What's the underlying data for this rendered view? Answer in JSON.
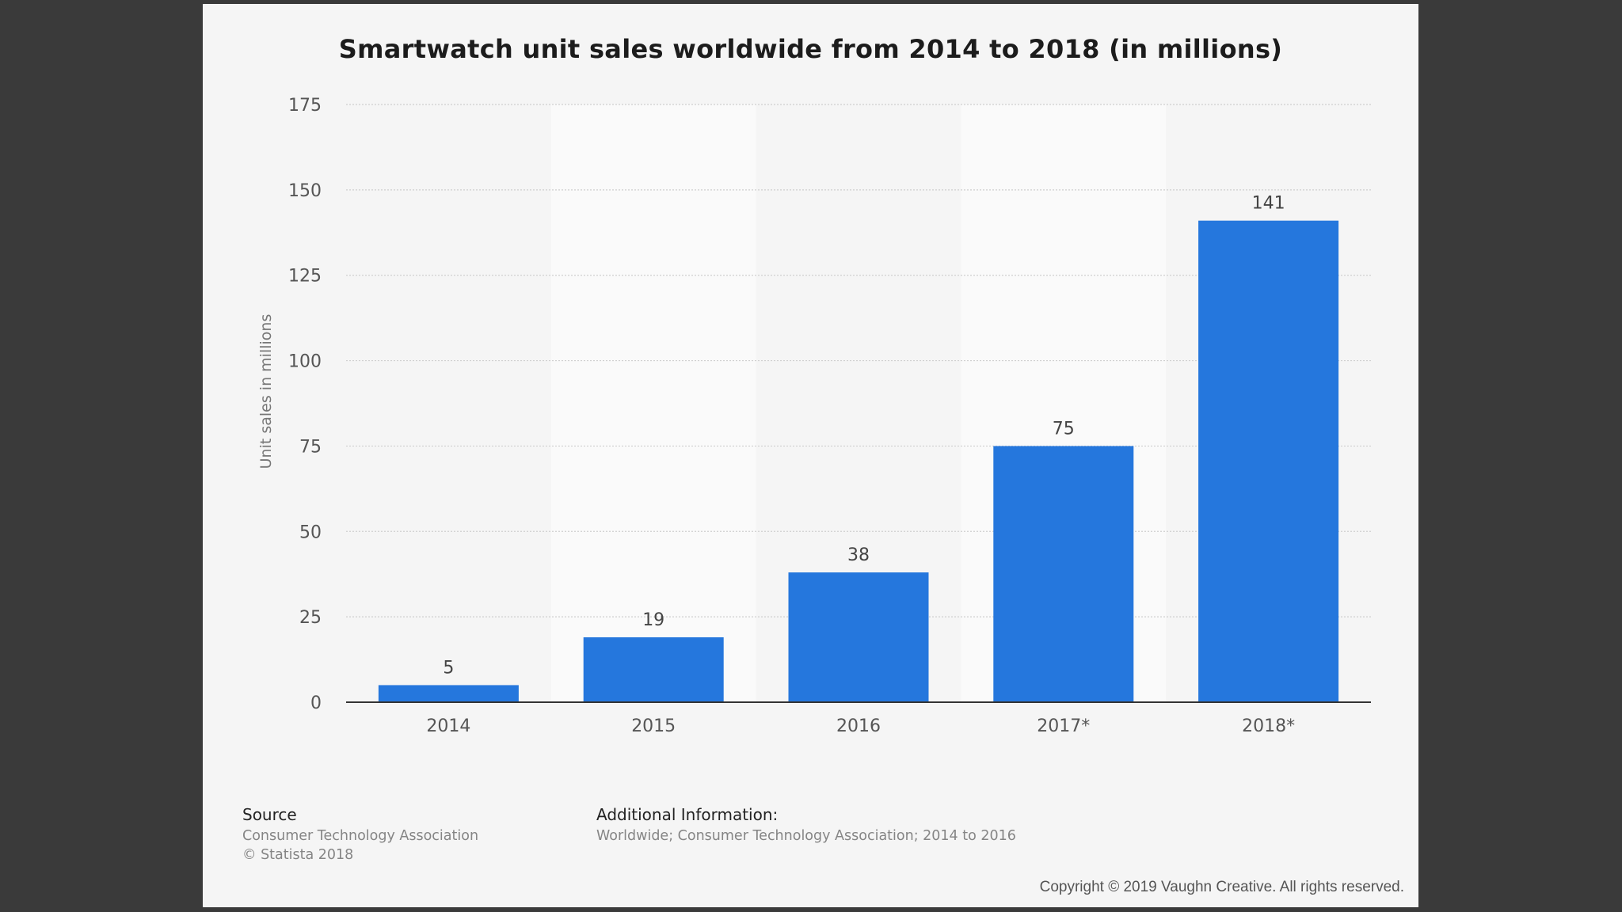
{
  "chart_data": {
    "type": "bar",
    "title": "Smartwatch unit sales worldwide from 2014 to 2018 (in millions)",
    "categories": [
      "2014",
      "2015",
      "2016",
      "2017*",
      "2018*"
    ],
    "values": [
      5,
      19,
      38,
      75,
      141
    ],
    "data_labels": [
      "5",
      "19",
      "38",
      "75",
      "141"
    ],
    "xlabel": "",
    "ylabel": "Unit sales in millions",
    "ylim": [
      0,
      175
    ],
    "yticks": [
      0,
      25,
      50,
      75,
      100,
      125,
      150,
      175
    ],
    "grid": true,
    "bar_color": "#2577dd"
  },
  "footer": {
    "source_heading": "Source",
    "source_line1": "Consumer Technology Association",
    "source_line2": "© Statista 2018",
    "additional_heading": "Additional Information:",
    "additional_text": "Worldwide; Consumer Technology Association; 2014 to 2016"
  },
  "copyright": "Copyright © 2019 Vaughn Creative. All rights reserved."
}
